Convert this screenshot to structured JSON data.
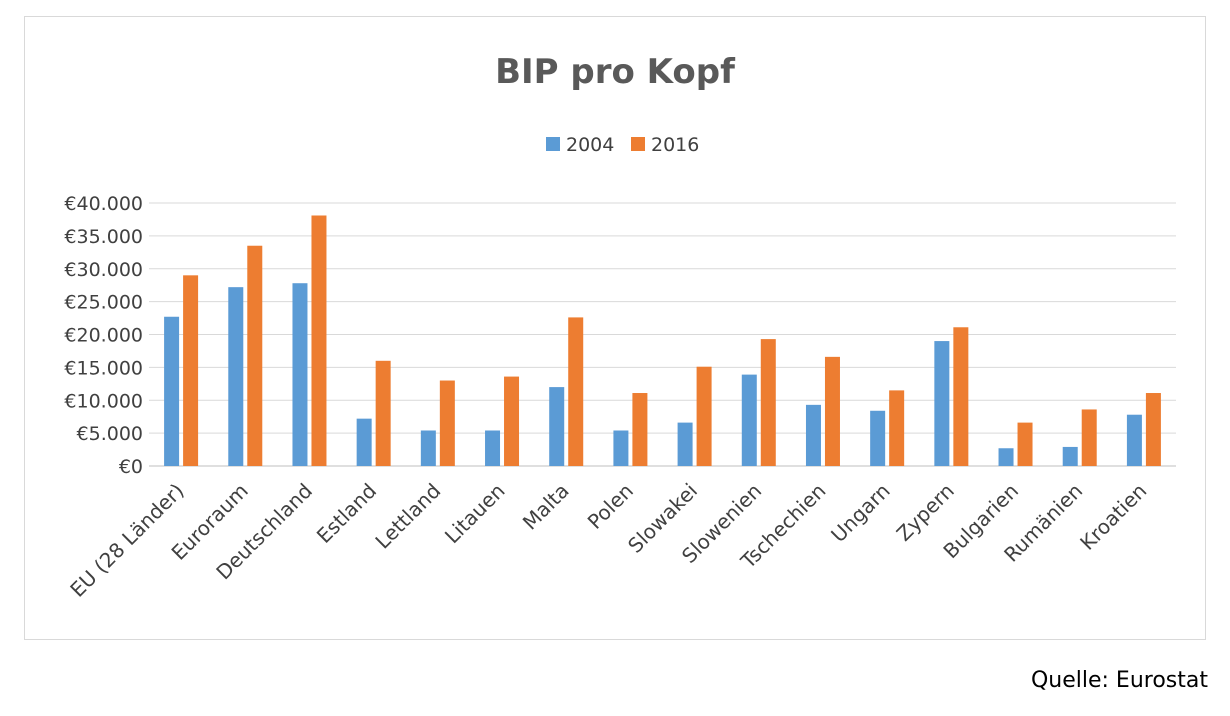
{
  "chart_data": {
    "type": "bar",
    "title": "BIP pro Kopf",
    "xlabel": "",
    "ylabel": "",
    "categories": [
      "EU (28 Länder)",
      "Euroraum",
      "Deutschland",
      "Estland",
      "Lettland",
      "Litauen",
      "Malta",
      "Polen",
      "Slowakei",
      "Slowenien",
      "Tschechien",
      "Ungarn",
      "Zypern",
      "Bulgarien",
      "Rumänien",
      "Kroatien"
    ],
    "series": [
      {
        "name": "2004",
        "color": "#5b9bd5",
        "values": [
          22700,
          27200,
          27800,
          7200,
          5400,
          5400,
          12000,
          5400,
          6600,
          13900,
          9300,
          8400,
          19000,
          2700,
          2900,
          7800
        ]
      },
      {
        "name": "2016",
        "color": "#ed7d31",
        "values": [
          29000,
          33500,
          38100,
          16000,
          13000,
          13600,
          22600,
          11100,
          15100,
          19300,
          16600,
          11500,
          21100,
          6600,
          8600,
          11100
        ]
      }
    ],
    "ylim": [
      0,
      40000
    ],
    "yticks": [
      0,
      5000,
      10000,
      15000,
      20000,
      25000,
      30000,
      35000,
      40000
    ],
    "ytick_labels": [
      "€0",
      "€5.000",
      "€10.000",
      "€15.000",
      "€20.000",
      "€25.000",
      "€30.000",
      "€35.000",
      "€40.000"
    ],
    "grid": true,
    "legend": "top-center"
  },
  "source": "Quelle: Eurostat"
}
